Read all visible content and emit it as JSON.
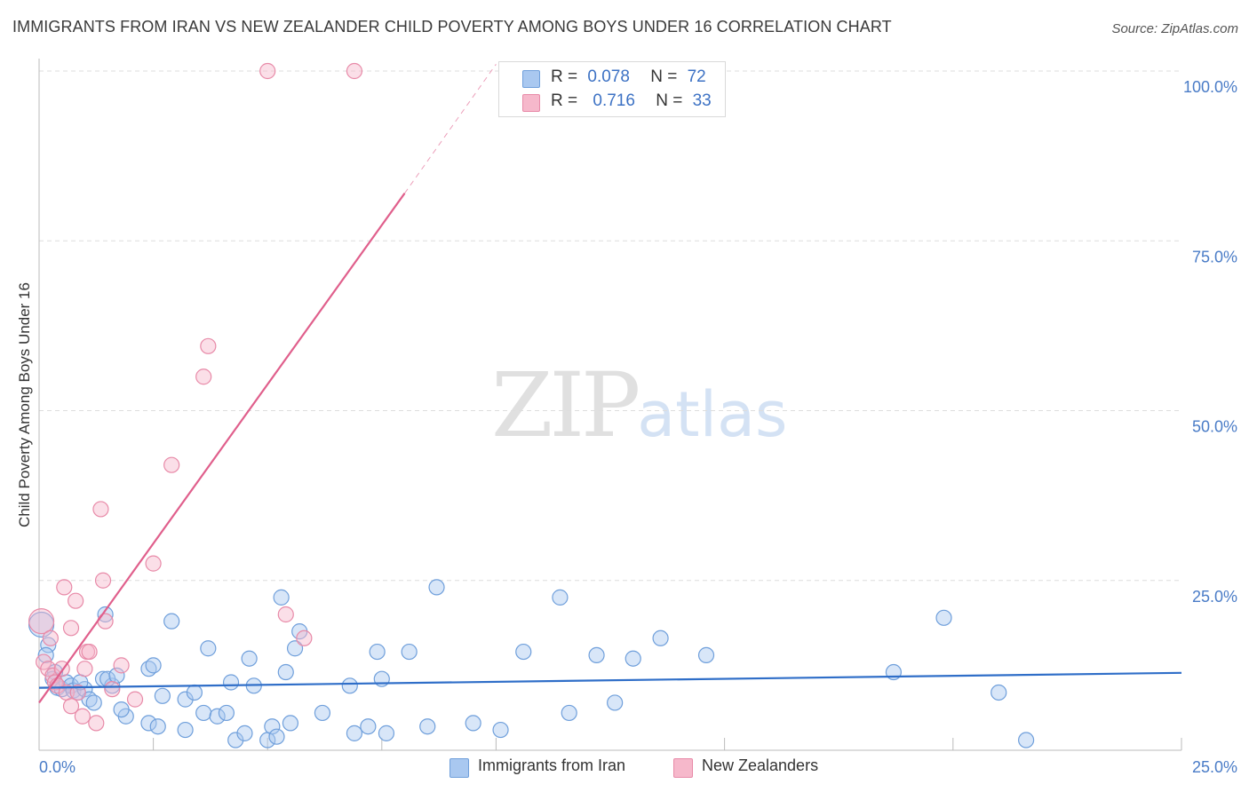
{
  "header": {
    "title": "IMMIGRANTS FROM IRAN VS NEW ZEALANDER CHILD POVERTY AMONG BOYS UNDER 16 CORRELATION CHART",
    "source": "Source: ZipAtlas.com"
  },
  "watermark": {
    "zip": "ZIP",
    "atlas": "atlas"
  },
  "legend": {
    "r_label": "R =",
    "n_label": "N =",
    "rows": [
      {
        "r": "0.078",
        "n": "72",
        "color": "#a9c8f0"
      },
      {
        "r": "0.716",
        "n": "33",
        "color": "#f6b8cb"
      }
    ]
  },
  "bottom_legend": {
    "items": [
      {
        "label": "Immigrants from Iran",
        "color": "#a9c8f0"
      },
      {
        "label": "New Zealanders",
        "color": "#f6b8cb"
      }
    ]
  },
  "colors": {
    "blue_fill": "#a9c8f0",
    "blue_stroke": "#6f9fdb",
    "blue_line": "#2f6ec8",
    "pink_fill": "#f6b8cb",
    "pink_stroke": "#e88aa8",
    "pink_line": "#e05f8c",
    "tick_text": "#4a7cc7",
    "grid": "#dddddd"
  },
  "chart_data": {
    "type": "scatter",
    "title": "IMMIGRANTS FROM IRAN VS NEW ZEALANDER CHILD POVERTY AMONG BOYS UNDER 16 CORRELATION CHART",
    "xlabel": "",
    "ylabel": "Child Poverty Among Boys Under 16",
    "xlim": [
      0,
      25
    ],
    "ylim": [
      0,
      100
    ],
    "x_tick_labels": [
      "0.0%",
      "25.0%"
    ],
    "y_tick_labels": [
      "100.0%",
      "75.0%",
      "50.0%",
      "25.0%"
    ],
    "y_ticks": [
      100,
      75,
      50,
      25
    ],
    "x_grid_ticks": [
      0,
      2.5,
      5,
      7.5,
      10,
      12.5,
      15,
      17.5,
      20,
      22.5,
      25
    ],
    "series": [
      {
        "name": "Immigrants from Iran",
        "r": 0.078,
        "n": 72,
        "trend": {
          "x": [
            0,
            25
          ],
          "y": [
            9.2,
            11.4
          ],
          "dashed_from": null
        },
        "points": [
          [
            0.05,
            18.5
          ],
          [
            0.2,
            15.5
          ],
          [
            0.35,
            11.5
          ],
          [
            0.3,
            10.5
          ],
          [
            0.4,
            9.2
          ],
          [
            0.5,
            9.0
          ],
          [
            0.6,
            10.0
          ],
          [
            0.7,
            9.5
          ],
          [
            0.75,
            8.8
          ],
          [
            0.85,
            8.5
          ],
          [
            1.0,
            9.0
          ],
          [
            1.1,
            7.5
          ],
          [
            1.2,
            7.0
          ],
          [
            1.4,
            10.5
          ],
          [
            1.6,
            9.5
          ],
          [
            1.45,
            20.0
          ],
          [
            1.5,
            10.5
          ],
          [
            1.7,
            11.0
          ],
          [
            1.9,
            5.0
          ],
          [
            1.8,
            6.0
          ],
          [
            2.4,
            12.0
          ],
          [
            2.5,
            12.5
          ],
          [
            2.4,
            4.0
          ],
          [
            2.6,
            3.5
          ],
          [
            2.7,
            8.0
          ],
          [
            2.9,
            19.0
          ],
          [
            3.2,
            3.0
          ],
          [
            3.2,
            7.5
          ],
          [
            3.4,
            8.5
          ],
          [
            3.6,
            5.5
          ],
          [
            3.9,
            5.0
          ],
          [
            3.7,
            15.0
          ],
          [
            4.2,
            10.0
          ],
          [
            4.1,
            5.5
          ],
          [
            4.3,
            1.5
          ],
          [
            4.5,
            2.5
          ],
          [
            4.6,
            13.5
          ],
          [
            4.7,
            9.5
          ],
          [
            5.0,
            1.5
          ],
          [
            5.1,
            3.5
          ],
          [
            5.2,
            2.0
          ],
          [
            5.3,
            22.5
          ],
          [
            5.4,
            11.5
          ],
          [
            5.5,
            4.0
          ],
          [
            5.6,
            15.0
          ],
          [
            5.7,
            17.5
          ],
          [
            6.2,
            5.5
          ],
          [
            6.8,
            9.5
          ],
          [
            6.9,
            2.5
          ],
          [
            7.2,
            3.5
          ],
          [
            7.4,
            14.5
          ],
          [
            7.5,
            10.5
          ],
          [
            7.6,
            2.5
          ],
          [
            8.1,
            14.5
          ],
          [
            8.5,
            3.5
          ],
          [
            8.7,
            24.0
          ],
          [
            9.5,
            4.0
          ],
          [
            10.1,
            3.0
          ],
          [
            10.6,
            14.5
          ],
          [
            11.4,
            22.5
          ],
          [
            11.6,
            5.5
          ],
          [
            12.2,
            14.0
          ],
          [
            12.6,
            7.0
          ],
          [
            13.0,
            13.5
          ],
          [
            13.6,
            16.5
          ],
          [
            14.6,
            14.0
          ],
          [
            18.7,
            11.5
          ],
          [
            19.8,
            19.5
          ],
          [
            21.0,
            8.5
          ],
          [
            21.6,
            1.5
          ],
          [
            0.15,
            14.0
          ],
          [
            0.9,
            10.0
          ]
        ]
      },
      {
        "name": "New Zealanders",
        "r": 0.716,
        "n": 33,
        "trend": {
          "x": [
            0,
            8.0
          ],
          "y": [
            7.0,
            82.0
          ],
          "dashed_to": [
            10.0,
            101.0
          ]
        },
        "points": [
          [
            0.05,
            19.0
          ],
          [
            0.1,
            13.0
          ],
          [
            0.2,
            12.0
          ],
          [
            0.25,
            16.5
          ],
          [
            0.3,
            11.0
          ],
          [
            0.35,
            10.0
          ],
          [
            0.4,
            9.5
          ],
          [
            0.5,
            12.0
          ],
          [
            0.55,
            24.0
          ],
          [
            0.6,
            8.5
          ],
          [
            0.7,
            18.0
          ],
          [
            0.7,
            6.5
          ],
          [
            0.8,
            22.0
          ],
          [
            0.85,
            8.5
          ],
          [
            0.95,
            5.0
          ],
          [
            1.0,
            12.0
          ],
          [
            1.05,
            14.5
          ],
          [
            1.1,
            14.5
          ],
          [
            1.25,
            4.0
          ],
          [
            1.35,
            35.5
          ],
          [
            1.4,
            25.0
          ],
          [
            1.45,
            19.0
          ],
          [
            1.6,
            9.0
          ],
          [
            1.8,
            12.5
          ],
          [
            2.1,
            7.5
          ],
          [
            2.5,
            27.5
          ],
          [
            2.9,
            42.0
          ],
          [
            3.6,
            55.0
          ],
          [
            3.7,
            59.5
          ],
          [
            5.0,
            100.0
          ],
          [
            5.4,
            20.0
          ],
          [
            5.8,
            16.5
          ],
          [
            6.9,
            100.0
          ]
        ]
      }
    ]
  }
}
